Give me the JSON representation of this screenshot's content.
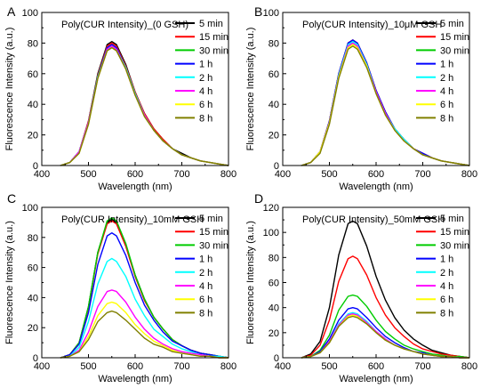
{
  "colors": {
    "5 min": "#000000",
    "15 min": "#ff0000",
    "30 min": "#00cc00",
    "1 h": "#0000ff",
    "2 h": "#00ffff",
    "4 h": "#ff00ff",
    "6 h": "#ffff00",
    "8 h": "#808000"
  },
  "chart_data": [
    {
      "type": "line",
      "letter": "A",
      "title": "Poly(CUR Intensity)_(0 GSH)",
      "xlabel": "Wavelength (nm)",
      "ylabel": "Fluorescence Intensity (a.u.)",
      "xlim": [
        400,
        800
      ],
      "ylim": [
        0,
        100
      ],
      "xticks": [
        400,
        500,
        600,
        700,
        800
      ],
      "yticks": [
        0,
        20,
        40,
        60,
        80,
        100
      ],
      "legend": "top-right",
      "x": [
        440,
        460,
        480,
        500,
        520,
        540,
        550,
        560,
        580,
        600,
        620,
        640,
        660,
        680,
        700,
        720,
        740,
        760,
        780,
        800
      ],
      "series": [
        {
          "name": "5 min",
          "values": [
            0,
            2,
            9,
            29,
            60,
            79,
            81,
            79,
            66,
            48,
            34,
            24,
            17,
            11,
            8,
            5,
            3,
            2,
            1,
            0
          ]
        },
        {
          "name": "15 min",
          "values": [
            0,
            2,
            9,
            29,
            59,
            78,
            80,
            78,
            65,
            48,
            34,
            24,
            17,
            11,
            7,
            5,
            3,
            2,
            1,
            0
          ]
        },
        {
          "name": "30 min",
          "values": [
            0,
            2,
            9,
            28,
            58,
            77,
            79,
            77,
            64,
            47,
            33,
            23,
            16,
            11,
            7,
            5,
            3,
            2,
            1,
            0
          ]
        },
        {
          "name": "1 h",
          "values": [
            0,
            2,
            9,
            28,
            58,
            77,
            79,
            77,
            64,
            47,
            33,
            23,
            16,
            11,
            7,
            5,
            3,
            2,
            1,
            0
          ]
        },
        {
          "name": "2 h",
          "values": [
            0,
            2,
            9,
            28,
            58,
            76,
            78,
            76,
            64,
            47,
            33,
            23,
            16,
            11,
            7,
            5,
            3,
            2,
            1,
            0
          ]
        },
        {
          "name": "4 h",
          "values": [
            0,
            2,
            9,
            28,
            57,
            76,
            78,
            76,
            63,
            46,
            33,
            23,
            16,
            11,
            7,
            5,
            3,
            2,
            1,
            0
          ]
        },
        {
          "name": "6 h",
          "values": [
            0,
            2,
            8,
            27,
            57,
            75,
            77,
            75,
            63,
            46,
            32,
            23,
            16,
            11,
            7,
            5,
            3,
            2,
            1,
            0
          ]
        },
        {
          "name": "8 h",
          "values": [
            0,
            2,
            8,
            27,
            57,
            75,
            77,
            75,
            63,
            46,
            32,
            23,
            16,
            11,
            7,
            5,
            3,
            2,
            1,
            0
          ]
        }
      ]
    },
    {
      "type": "line",
      "letter": "B",
      "title": "Poly(CUR Intensity)_10μM GSH",
      "xlabel": "Wavelength (nm)",
      "ylabel": "Fluorescence Intensity (a.u.)",
      "xlim": [
        400,
        800
      ],
      "ylim": [
        0,
        100
      ],
      "xticks": [
        400,
        500,
        600,
        700,
        800
      ],
      "yticks": [
        0,
        20,
        40,
        60,
        80,
        100
      ],
      "legend": "top-right",
      "x": [
        440,
        460,
        480,
        500,
        520,
        540,
        550,
        560,
        580,
        600,
        620,
        640,
        660,
        680,
        700,
        720,
        740,
        760,
        780,
        800
      ],
      "series": [
        {
          "name": "5 min",
          "values": [
            0,
            2,
            9,
            29,
            60,
            80,
            82,
            80,
            67,
            49,
            35,
            24,
            17,
            11,
            8,
            5,
            3,
            2,
            1,
            0
          ]
        },
        {
          "name": "15 min",
          "values": [
            0,
            2,
            9,
            29,
            60,
            80,
            82,
            80,
            67,
            49,
            35,
            24,
            17,
            11,
            8,
            5,
            3,
            2,
            1,
            0
          ]
        },
        {
          "name": "30 min",
          "values": [
            0,
            2,
            9,
            28,
            59,
            79,
            81,
            79,
            66,
            48,
            34,
            24,
            17,
            11,
            7,
            5,
            3,
            2,
            1,
            0
          ]
        },
        {
          "name": "1 h",
          "values": [
            0,
            2,
            9,
            29,
            60,
            80,
            82,
            80,
            67,
            49,
            35,
            24,
            17,
            11,
            8,
            5,
            3,
            2,
            1,
            0
          ]
        },
        {
          "name": "2 h",
          "values": [
            0,
            2,
            9,
            28,
            59,
            79,
            81,
            79,
            66,
            48,
            34,
            24,
            17,
            11,
            7,
            5,
            3,
            2,
            1,
            0
          ]
        },
        {
          "name": "4 h",
          "values": [
            0,
            2,
            9,
            28,
            58,
            78,
            80,
            78,
            65,
            48,
            34,
            23,
            16,
            11,
            7,
            5,
            3,
            2,
            1,
            0
          ]
        },
        {
          "name": "6 h",
          "values": [
            0,
            2,
            9,
            28,
            58,
            77,
            79,
            77,
            65,
            47,
            33,
            23,
            16,
            11,
            7,
            5,
            3,
            2,
            1,
            0
          ]
        },
        {
          "name": "8 h",
          "values": [
            0,
            2,
            8,
            27,
            57,
            76,
            78,
            76,
            64,
            47,
            33,
            23,
            16,
            11,
            7,
            5,
            3,
            2,
            1,
            0
          ]
        }
      ]
    },
    {
      "type": "line",
      "letter": "C",
      "title": "Poly(CUR Intensity)_10mM GSH",
      "xlabel": "Wavelength (nm)",
      "ylabel": "Fluorescence Intensity (a.u.)",
      "xlim": [
        400,
        800
      ],
      "ylim": [
        0,
        100
      ],
      "xticks": [
        400,
        500,
        600,
        700,
        800
      ],
      "yticks": [
        0,
        20,
        40,
        60,
        80,
        100
      ],
      "legend": "top-right",
      "x": [
        440,
        460,
        480,
        500,
        520,
        540,
        550,
        560,
        580,
        600,
        620,
        640,
        660,
        680,
        700,
        720,
        740,
        760,
        780,
        800
      ],
      "series": [
        {
          "name": "5 min",
          "values": [
            0,
            2,
            10,
            34,
            70,
            90,
            92,
            90,
            75,
            55,
            39,
            27,
            19,
            12,
            8,
            5,
            3,
            2,
            1,
            0
          ]
        },
        {
          "name": "15 min",
          "values": [
            0,
            2,
            10,
            33,
            69,
            89,
            91,
            89,
            74,
            54,
            38,
            27,
            19,
            12,
            8,
            5,
            3,
            2,
            1,
            0
          ]
        },
        {
          "name": "30 min",
          "values": [
            0,
            2,
            10,
            34,
            70,
            91,
            93,
            91,
            76,
            55,
            39,
            27,
            19,
            12,
            8,
            5,
            3,
            2,
            1,
            0
          ]
        },
        {
          "name": "1 h",
          "values": [
            0,
            2,
            9,
            30,
            62,
            81,
            83,
            81,
            68,
            50,
            35,
            25,
            17,
            11,
            8,
            5,
            3,
            2,
            1,
            0
          ]
        },
        {
          "name": "2 h",
          "values": [
            0,
            1,
            7,
            24,
            49,
            64,
            66,
            64,
            54,
            39,
            28,
            19,
            14,
            9,
            6,
            4,
            2,
            1,
            1,
            0
          ]
        },
        {
          "name": "4 h",
          "values": [
            0,
            1,
            5,
            17,
            34,
            44,
            45,
            44,
            37,
            27,
            19,
            13,
            9,
            6,
            4,
            3,
            2,
            1,
            0,
            0
          ]
        },
        {
          "name": "6 h",
          "values": [
            0,
            1,
            4,
            14,
            28,
            36,
            37,
            36,
            30,
            22,
            16,
            11,
            8,
            5,
            3,
            2,
            1,
            1,
            0,
            0
          ]
        },
        {
          "name": "8 h",
          "values": [
            0,
            1,
            4,
            12,
            24,
            30,
            31,
            30,
            25,
            19,
            13,
            9,
            7,
            4,
            3,
            2,
            1,
            1,
            0,
            0
          ]
        }
      ]
    },
    {
      "type": "line",
      "letter": "D",
      "title": "Poly(CUR Intensity)_50mM GSH",
      "xlabel": "Wavelength (nm)",
      "ylabel": "Fluorescence Intensity (a.u.)",
      "xlim": [
        400,
        800
      ],
      "ylim": [
        0,
        120
      ],
      "xticks": [
        400,
        500,
        600,
        700,
        800
      ],
      "yticks": [
        0,
        20,
        40,
        60,
        80,
        100,
        120
      ],
      "legend": "top-right",
      "x": [
        440,
        460,
        480,
        500,
        520,
        540,
        550,
        560,
        580,
        600,
        620,
        640,
        660,
        680,
        700,
        720,
        740,
        760,
        780,
        800
      ],
      "series": [
        {
          "name": "5 min",
          "values": [
            0,
            3,
            13,
            40,
            82,
            107,
            109,
            107,
            89,
            65,
            46,
            32,
            22,
            15,
            10,
            6,
            4,
            2,
            1,
            0
          ]
        },
        {
          "name": "15 min",
          "values": [
            0,
            2,
            10,
            30,
            61,
            79,
            81,
            79,
            66,
            48,
            34,
            24,
            17,
            11,
            7,
            5,
            3,
            2,
            1,
            0
          ]
        },
        {
          "name": "30 min",
          "values": [
            0,
            1,
            6,
            18,
            38,
            49,
            50,
            49,
            41,
            30,
            21,
            15,
            10,
            7,
            5,
            3,
            2,
            1,
            1,
            0
          ]
        },
        {
          "name": "1 h",
          "values": [
            0,
            1,
            5,
            15,
            30,
            39,
            40,
            39,
            32,
            24,
            17,
            12,
            8,
            5,
            4,
            2,
            1,
            1,
            0,
            0
          ]
        },
        {
          "name": "2 h",
          "values": [
            0,
            1,
            4,
            13,
            27,
            35,
            36,
            35,
            29,
            21,
            15,
            10,
            7,
            5,
            3,
            2,
            1,
            1,
            0,
            0
          ]
        },
        {
          "name": "4 h",
          "values": [
            0,
            1,
            4,
            13,
            26,
            34,
            35,
            34,
            28,
            21,
            15,
            10,
            7,
            5,
            3,
            2,
            1,
            1,
            0,
            0
          ]
        },
        {
          "name": "6 h",
          "values": [
            0,
            1,
            4,
            12,
            25,
            33,
            34,
            33,
            27,
            20,
            14,
            10,
            7,
            5,
            3,
            2,
            1,
            1,
            0,
            0
          ]
        },
        {
          "name": "8 h",
          "values": [
            0,
            1,
            4,
            12,
            25,
            32,
            33,
            32,
            27,
            20,
            14,
            10,
            7,
            5,
            3,
            2,
            1,
            1,
            0,
            0
          ]
        }
      ]
    }
  ]
}
